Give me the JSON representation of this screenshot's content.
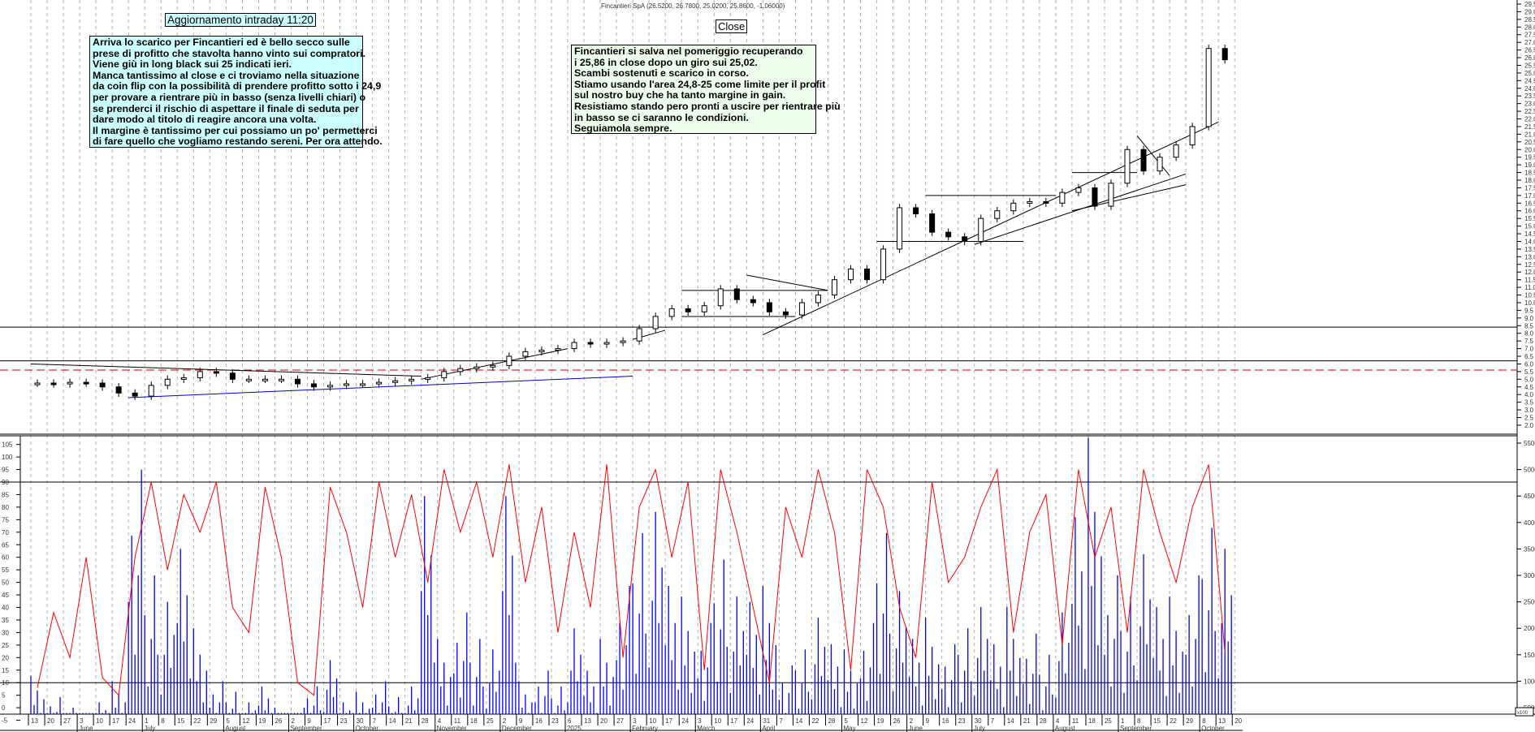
{
  "header": {
    "title": "Fincantieri SpA (26.5200, 26.7800, 25.0200, 25.8600, -1.06000)",
    "intraday_label": "Aggiornamento intraday 11:20",
    "close_label": "Close"
  },
  "notes": {
    "intraday": "Arriva lo scarico per Fincantieri ed è bello secco sulle\nprese di profitto che stavolta hanno vinto sui compratori.\nViene giù in long black sui 25 indicati ieri.\nManca tantissimo al close e ci troviamo nella situazione\nda coin flip con la possibilità di prendere profitto sotto i 24,9\nper provare a rientrare più in basso (senza livelli chiari) o\nse prenderci il rischio di aspettare il finale di seduta per\ndare modo al titolo di reagire ancora una volta.\nIl margine è tantissimo per cui possiamo un po' permetterci\ndi fare quello che vogliamo restando sereni. Per ora attendo.",
    "close": "Fincantieri si salva nel pomeriggio recuperando\ni 25,86 in close dopo un giro sui 25,02.\nScambi sostenuti e scarico in corso.\nStiamo usando l'area 24,8-25 come limite per il profit\nsul nostro buy che ha tanto margine in gain.\nResistiamo stando pero pronti a uscire per rientrare più\nin basso se ci saranno le condizioni.\nSeguiamola sempre."
  },
  "chart_data": {
    "type": "candlestick",
    "title": "Fincantieri SpA",
    "last_bar": {
      "open": 26.52,
      "high": 26.78,
      "low": 25.02,
      "close": 25.86,
      "change": -1.06
    },
    "price_axis": {
      "ylim": [
        2.0,
        29.5
      ],
      "step": 0.5
    },
    "oscillator_axis": {
      "ylim": [
        -5,
        105
      ],
      "step": 5,
      "levels": [
        10,
        90
      ]
    },
    "volume_axis": {
      "ylim": [
        5000,
        55000
      ],
      "step": 5000,
      "unit_label": "x100"
    },
    "x_tick_labels": [
      "13",
      "20",
      "27",
      "3",
      "10",
      "17",
      "24",
      "1",
      "8",
      "15",
      "22",
      "29",
      "5",
      "12",
      "19",
      "26",
      "2",
      "9",
      "17",
      "23",
      "30",
      "7",
      "14",
      "21",
      "28",
      "4",
      "11",
      "18",
      "25",
      "2",
      "9",
      "16",
      "23",
      "6",
      "13",
      "20",
      "27",
      "3",
      "10",
      "17",
      "24",
      "3",
      "10",
      "17",
      "24",
      "31",
      "7",
      "14",
      "22",
      "28",
      "5",
      "12",
      "19",
      "26",
      "2",
      "9",
      "16",
      "23",
      "30",
      "7",
      "14",
      "21",
      "28",
      "4",
      "11",
      "18",
      "25",
      "1",
      "8",
      "15",
      "22",
      "29",
      "8",
      "13",
      "20"
    ],
    "month_labels": [
      {
        "label": "June",
        "tick": 3
      },
      {
        "label": "July",
        "tick": 7
      },
      {
        "label": "August",
        "tick": 12
      },
      {
        "label": "September",
        "tick": 16
      },
      {
        "label": "October",
        "tick": 20
      },
      {
        "label": "November",
        "tick": 25
      },
      {
        "label": "December",
        "tick": 29
      },
      {
        "label": "2025",
        "tick": 33
      },
      {
        "label": "February",
        "tick": 37
      },
      {
        "label": "March",
        "tick": 41
      },
      {
        "label": "April",
        "tick": 45
      },
      {
        "label": "May",
        "tick": 50
      },
      {
        "label": "June",
        "tick": 54
      },
      {
        "label": "July",
        "tick": 58
      },
      {
        "label": "August",
        "tick": 63
      },
      {
        "label": "September",
        "tick": 67
      },
      {
        "label": "October",
        "tick": 72
      }
    ],
    "weekly_close": [
      4.75,
      4.7,
      4.8,
      4.75,
      4.5,
      4.1,
      3.9,
      4.6,
      5.0,
      5.1,
      5.5,
      5.4,
      5.0,
      5.0,
      5.0,
      5.0,
      4.7,
      4.5,
      4.6,
      4.7,
      4.7,
      4.8,
      4.9,
      5.0,
      5.1,
      5.5,
      5.7,
      5.8,
      5.9,
      6.5,
      6.8,
      6.9,
      7.0,
      7.4,
      7.3,
      7.4,
      7.5,
      8.3,
      9.1,
      9.6,
      9.4,
      9.8,
      10.9,
      10.2,
      10.0,
      9.4,
      9.2,
      10.0,
      10.5,
      11.5,
      12.2,
      11.5,
      13.5,
      16.2,
      15.8,
      14.6,
      14.3,
      14.0,
      15.5,
      16.0,
      16.5,
      16.6,
      16.5,
      17.2,
      17.5,
      16.3,
      17.8,
      20.0,
      18.6,
      19.5,
      20.3,
      21.5,
      26.6,
      25.86
    ],
    "oscillator": [
      8,
      38,
      20,
      60,
      12,
      5,
      60,
      90,
      55,
      85,
      70,
      90,
      40,
      30,
      88,
      60,
      10,
      5,
      88,
      70,
      40,
      90,
      60,
      85,
      50,
      95,
      70,
      90,
      60,
      97,
      50,
      80,
      30,
      70,
      40,
      97,
      20,
      80,
      95,
      60,
      90,
      15,
      95,
      70,
      40,
      10,
      80,
      60,
      95,
      70,
      15,
      95,
      80,
      40,
      20,
      90,
      50,
      60,
      80,
      95,
      30,
      70,
      85,
      25,
      95,
      60,
      80,
      30,
      95,
      70,
      50,
      80,
      97,
      22
    ],
    "volume": [
      110,
      70,
      50,
      40,
      60,
      100,
      500,
      300,
      250,
      350,
      200,
      100,
      80,
      60,
      90,
      50,
      50,
      90,
      140,
      60,
      80,
      100,
      70,
      90,
      450,
      180,
      230,
      180,
      160,
      450,
      100,
      120,
      90,
      200,
      120,
      180,
      280,
      380,
      420,
      280,
      260,
      210,
      330,
      260,
      250,
      280,
      130,
      160,
      220,
      170,
      160,
      210,
      380,
      270,
      180,
      220,
      170,
      200,
      240,
      170,
      240,
      190,
      150,
      230,
      410,
      560,
      300,
      260,
      340,
      240,
      260,
      300,
      390,
      350
    ],
    "horizontal_levels": [
      {
        "price": 8.4,
        "style": "solid",
        "color": "#000000"
      },
      {
        "price": 6.2,
        "style": "solid",
        "color": "#000000"
      },
      {
        "price": 5.6,
        "style": "dashed",
        "color": "#cc0000"
      }
    ],
    "trendlines": [
      {
        "from": [
          6,
          3.8
        ],
        "to": [
          37,
          5.2
        ],
        "color": "#0000cc"
      },
      {
        "from": [
          0,
          6.0
        ],
        "to": [
          24,
          5.2
        ],
        "color": "#000000"
      },
      {
        "from": [
          24,
          5.0
        ],
        "to": [
          33,
          7.0
        ],
        "color": "#000000"
      },
      {
        "from": [
          45,
          7.9
        ],
        "to": [
          73,
          21.8
        ],
        "color": "#000000"
      },
      {
        "from": [
          58,
          13.8
        ],
        "to": [
          71,
          18.4
        ],
        "color": "#000000"
      },
      {
        "from": [
          64,
          16.0
        ],
        "to": [
          71,
          17.7
        ],
        "color": "#000000"
      },
      {
        "from": [
          37,
          7.6
        ],
        "to": [
          39,
          8.2
        ],
        "color": "#000000"
      },
      {
        "from": [
          40,
          9.1
        ],
        "to": [
          47,
          9.1
        ],
        "color": "#000000"
      },
      {
        "from": [
          40,
          10.8
        ],
        "to": [
          49,
          10.8
        ],
        "color": "#000000"
      },
      {
        "from": [
          44,
          11.8
        ],
        "to": [
          49,
          10.8
        ],
        "color": "#000000"
      },
      {
        "from": [
          52,
          14.0
        ],
        "to": [
          61,
          14.0
        ],
        "color": "#000000"
      },
      {
        "from": [
          55,
          17.0
        ],
        "to": [
          63,
          17.0
        ],
        "color": "#000000"
      },
      {
        "from": [
          64,
          18.5
        ],
        "to": [
          68,
          18.5
        ],
        "color": "#000000"
      },
      {
        "from": [
          68,
          20.9
        ],
        "to": [
          70,
          18.3
        ],
        "color": "#000000"
      }
    ],
    "colors": {
      "oscillator": "#ff0000",
      "volume": "#0000ff",
      "grid": "#b0b0b0"
    }
  }
}
